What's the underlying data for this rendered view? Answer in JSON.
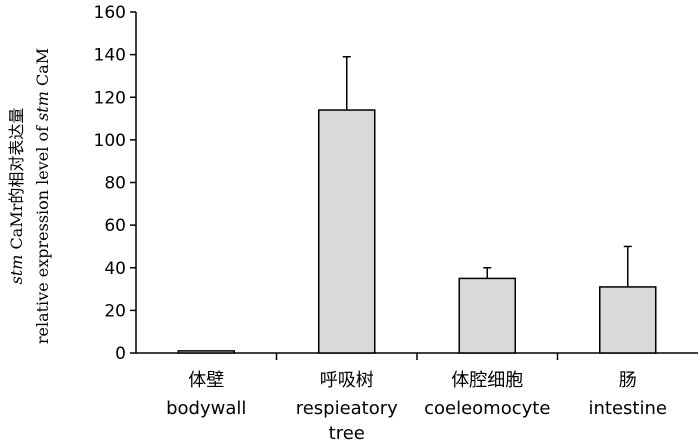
{
  "chart_data": {
    "type": "bar",
    "categories": [
      {
        "zh": "体壁",
        "en": [
          "bodywall"
        ]
      },
      {
        "zh": "呼吸树",
        "en": [
          "respieatory",
          "tree"
        ]
      },
      {
        "zh": "体腔细胞",
        "en": [
          "coeleomocyte"
        ]
      },
      {
        "zh": "肠",
        "en": [
          "intestine"
        ]
      }
    ],
    "values": [
      1,
      114,
      35,
      31
    ],
    "errors": [
      0,
      25,
      5,
      19
    ],
    "ylim": [
      0,
      160
    ],
    "yticks": [
      0,
      20,
      40,
      60,
      80,
      100,
      120,
      140,
      160
    ],
    "ylabel_line1_italic": "stm",
    "ylabel_line1_rest": " CaMr的相对表达量",
    "ylabel_line2_rest": "relative expression level of ",
    "ylabel_line2_italic": "stm",
    "ylabel_line2_end": " CaM",
    "bar_color": "#d9d9d9",
    "edge_color": "#000000",
    "grid": false,
    "legend": "none"
  }
}
